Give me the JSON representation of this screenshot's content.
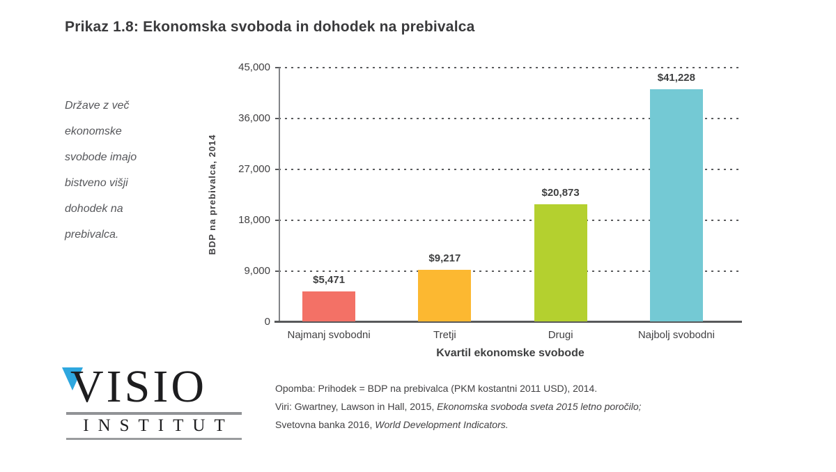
{
  "header": {
    "title": "Prikaz 1.8: Ekonomska svoboda in dohodek na prebivalca"
  },
  "sidenote": {
    "text": "Države z več\nekonomske\nsvobode imajo\nbistveno višji\ndohodek na\nprebivalca."
  },
  "chart_data": {
    "type": "bar",
    "title": "Prikaz 1.8: Ekonomska svoboda in dohodek na prebivalca",
    "categories": [
      "Najmanj svobodni",
      "Tretji",
      "Drugi",
      "Najbolj svobodni"
    ],
    "values": [
      5471,
      9217,
      20873,
      41228
    ],
    "bar_labels": [
      "$5,471",
      "$9,217",
      "$20,873",
      "$41,228"
    ],
    "bar_colors": [
      "#f37166",
      "#fcb831",
      "#b4d02f",
      "#74c9d4"
    ],
    "xlabel": "Kvartil ekonomske svobode",
    "ylabel": "BDP na prebivalca, 2014",
    "ylim": [
      0,
      45000
    ],
    "yticks": [
      0,
      9000,
      18000,
      27000,
      36000,
      45000
    ],
    "ytick_labels": [
      "0",
      "9,000",
      "18,000",
      "27,000",
      "36,000",
      "45,000"
    ],
    "grid": "horizontal-dotted",
    "legend": "none",
    "grid_color": "#5a5b5d",
    "axis_color": "#58595b"
  },
  "footnote": {
    "lines": [
      {
        "segments": [
          {
            "text": "Opomba: Prihodek = BDP na prebivalca (PKM kostantni 2011 USD), 2014.",
            "italic": false
          }
        ]
      },
      {
        "segments": [
          {
            "text": "Viri: Gwartney, Lawson in Hall, 2015, ",
            "italic": false
          },
          {
            "text": "Ekonomska svoboda sveta 2015 letno poročilo;",
            "italic": true
          }
        ]
      },
      {
        "segments": [
          {
            "text": "Svetovna banka 2016, ",
            "italic": false
          },
          {
            "text": "World Development Indicators.",
            "italic": true
          }
        ]
      }
    ]
  },
  "logo": {
    "name": "VISIO",
    "subtitle": "INSTITUT",
    "triangle_color": "#2ea7df"
  }
}
